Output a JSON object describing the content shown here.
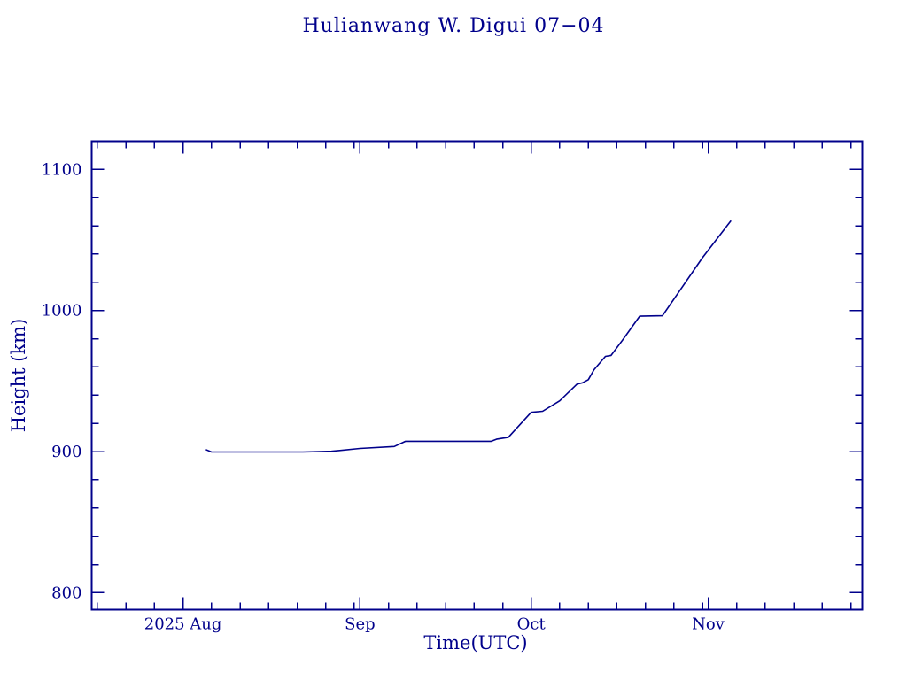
{
  "title": "Hulianwang W. Digui 07−04",
  "colors": {
    "ink": "#00008B",
    "background": "#FFFFFF"
  },
  "chart_data": {
    "type": "line",
    "title": "Hulianwang W. Digui 07−04",
    "xlabel": "Time(UTC)",
    "ylabel": "Height (km)",
    "grid": false,
    "legend": false,
    "line_color": "#00008B",
    "x_axis": {
      "kind": "date",
      "year": 2025,
      "range": [
        "2025-07-16",
        "2025-11-28"
      ],
      "major_ticks": [
        {
          "date": "2025-08-01",
          "label": "2025 Aug"
        },
        {
          "date": "2025-09-01",
          "label": "Sep"
        },
        {
          "date": "2025-10-01",
          "label": "Oct"
        },
        {
          "date": "2025-11-01",
          "label": "Nov"
        }
      ],
      "minor_tick_interval_days": 5
    },
    "y_axis": {
      "range": [
        788,
        1120
      ],
      "major_ticks": [
        800,
        900,
        1000,
        1100
      ],
      "minor_tick_interval": 20
    },
    "series": [
      {
        "name": "height",
        "points": [
          [
            "2025-08-05",
            901.4
          ],
          [
            "2025-08-06",
            899.7
          ],
          [
            "2025-08-22",
            899.7
          ],
          [
            "2025-08-27",
            900.2
          ],
          [
            "2025-09-01",
            902.2
          ],
          [
            "2025-09-07",
            903.6
          ],
          [
            "2025-09-09",
            907.3
          ],
          [
            "2025-09-24",
            907.3
          ],
          [
            "2025-09-25",
            908.9
          ],
          [
            "2025-09-27",
            910.1
          ],
          [
            "2025-10-01",
            927.8
          ],
          [
            "2025-10-03",
            928.6
          ],
          [
            "2025-10-06",
            936.0
          ],
          [
            "2025-10-09",
            947.8
          ],
          [
            "2025-10-10",
            948.8
          ],
          [
            "2025-10-11",
            951.0
          ],
          [
            "2025-10-12",
            958.0
          ],
          [
            "2025-10-14",
            967.5
          ],
          [
            "2025-10-15",
            968.2
          ],
          [
            "2025-10-17",
            979.0
          ],
          [
            "2025-10-20",
            996.0
          ],
          [
            "2025-10-24",
            996.3
          ],
          [
            "2025-10-31",
            1037.5
          ],
          [
            "2025-11-05",
            1063.7
          ]
        ]
      }
    ]
  }
}
